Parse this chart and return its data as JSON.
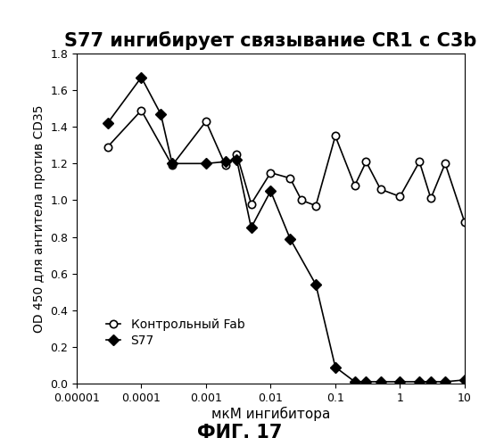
{
  "title": "S77 ингибирует связывание CR1 с С3b",
  "xlabel": "мкМ ингибитора",
  "ylabel": "OD 450 для антитела против CD35",
  "fig_label": "ФИГ. 17",
  "xlim": [
    1e-05,
    10
  ],
  "ylim": [
    0,
    1.8
  ],
  "yticks": [
    0.0,
    0.2,
    0.4,
    0.6,
    0.8,
    1.0,
    1.2,
    1.4,
    1.6,
    1.8
  ],
  "xtick_positions": [
    1e-05,
    0.0001,
    0.001,
    0.01,
    0.1,
    1,
    10
  ],
  "xtick_labels": [
    "0.00001",
    "0.0001",
    "0.001",
    "0.01",
    "0.1",
    "1",
    "10"
  ],
  "control_fab_x": [
    3e-05,
    0.0001,
    0.0003,
    0.001,
    0.002,
    0.003,
    0.005,
    0.01,
    0.02,
    0.03,
    0.05,
    0.1,
    0.2,
    0.3,
    0.5,
    1.0,
    2.0,
    3.0,
    5.0,
    10.0
  ],
  "control_fab_y": [
    1.29,
    1.49,
    1.19,
    1.43,
    1.19,
    1.25,
    0.98,
    1.15,
    1.12,
    1.0,
    0.97,
    1.35,
    1.08,
    1.21,
    1.06,
    1.02,
    1.21,
    1.01,
    1.2,
    0.88
  ],
  "s77_x": [
    3e-05,
    0.0001,
    0.0002,
    0.0003,
    0.001,
    0.002,
    0.003,
    0.005,
    0.01,
    0.02,
    0.05,
    0.1,
    0.2,
    0.3,
    0.5,
    1.0,
    2.0,
    3.0,
    5.0,
    10.0
  ],
  "s77_y": [
    1.42,
    1.67,
    1.47,
    1.2,
    1.2,
    1.21,
    1.22,
    0.85,
    1.05,
    0.79,
    0.54,
    0.09,
    0.01,
    0.01,
    0.01,
    0.01,
    0.01,
    0.01,
    0.01,
    0.02
  ],
  "legend_control": "Контрольный Fab",
  "legend_s77": "S77",
  "line_color": "#000000",
  "background_color": "#ffffff",
  "title_fontsize": 15,
  "axis_label_fontsize": 11,
  "tick_fontsize": 9,
  "legend_fontsize": 10,
  "fig_label_fontsize": 15
}
